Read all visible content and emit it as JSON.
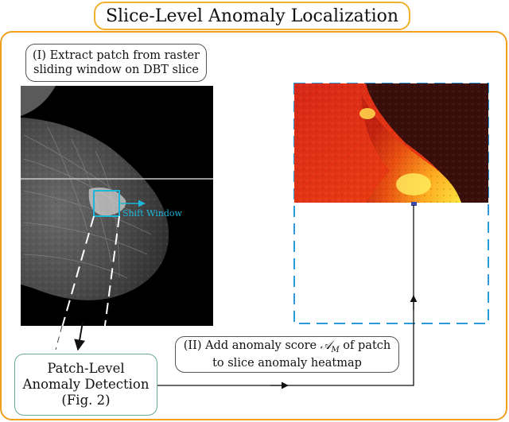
{
  "title": "Slice-Level Anomaly Localization",
  "step1": {
    "line1": "(I) Extract patch from raster",
    "line2": "sliding window on DBT slice"
  },
  "window_label": "Shift Window",
  "step2": {
    "line1_prefix": "(II) Add anomaly score ",
    "score_symbol": "𝒜",
    "score_subscript": "M",
    "line1_suffix": " of patch",
    "line2": "to slice anomaly heatmap"
  },
  "patch_detection": {
    "line1": "Patch-Level",
    "line2": "Anomaly Detection",
    "line3": "(Fig. 2)"
  },
  "colors": {
    "outer_border": "#f0a020",
    "title_border": "#f0b030",
    "window_cyan": "#1fb5d8",
    "heatmap_frame": "#2a9ad8",
    "patch_box_border": "#6aaa9a",
    "arrow": "#111111"
  }
}
